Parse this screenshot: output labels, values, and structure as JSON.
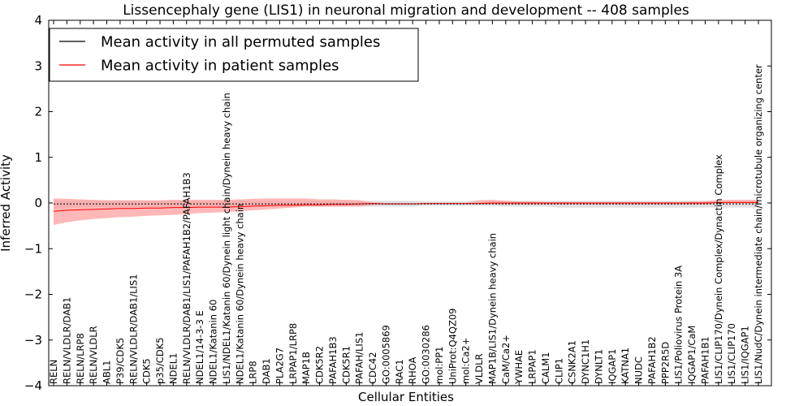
{
  "chart_data": {
    "type": "line",
    "title": "Lissencephaly gene (LIS1) in neuronal migration and development -- 408 samples",
    "xlabel": "Cellular Entities",
    "ylabel": "Inferred Activity",
    "ylim": [
      -4,
      4
    ],
    "yticks": [
      -4,
      -3,
      -2,
      -1,
      0,
      1,
      2,
      3,
      4
    ],
    "ytick_labels": [
      "−4",
      "−3",
      "−2",
      "−1",
      "0",
      "1",
      "2",
      "3",
      "4"
    ],
    "grid": false,
    "legend_position": "top-left",
    "categories": [
      "RELN",
      "RELN/VLDLR/DAB1",
      "RELN/LRP8",
      "RELN/VLDLR",
      "ABL1",
      "P39/CDK5",
      "RELN/VLDLR/DAB1/LIS1",
      "CDK5",
      "p35/CDK5",
      "NDEL1",
      "RELN/VLDLR/DAB1/LIS1/PAFAH1B2/PAFAH1B3",
      "NDEL1/14-3-3 E",
      "NDEL1/Katanin 60",
      "LIS1/NDEL1/Katanin 60/Dynein light chain/Dynein heavy chain",
      "NDEL1/Katanin 60/Dynein heavy chain",
      "LRP8",
      "DAB1",
      "PLA2G7",
      "LRPAP1/LRP8",
      "MAP1B",
      "CDK5R2",
      "PAFAH1B3",
      "CDK5R1",
      "PAFAH/LIS1",
      "CDC42",
      "GO:0005869",
      "RAC1",
      "RHOA",
      "GO:0030286",
      "mol:PP1",
      "UniProt:Q4QZ09",
      "mol:Ca2+",
      "VLDLR",
      "MAP1B/LIS1/Dynein heavy chain",
      "CaM/Ca2+",
      "YWHAE",
      "LRPAP1",
      "CALM1",
      "CLIP1",
      "CSNK2A1",
      "DYNC1H1",
      "DYNLT1",
      "IQGAP1",
      "KATNA1",
      "NUDC",
      "PAFAH1B2",
      "PPP2R5D",
      "LIS1/Poliovirus Protein 3A",
      "IQGAP1/CaM",
      "PAFAH1B1",
      "LIS1/CLIP170/Dynein Complex/Dynactin Complex",
      "LIS1/CLIP170",
      "LIS1/IQGAP1",
      "LIS1/NudC/Dynein intermediate chain/microtubule organizing center"
    ],
    "series": [
      {
        "name": "Mean activity in all permuted samples",
        "color": "#000000",
        "band_color": "#bbbbbb",
        "values": [
          -0.02,
          -0.02,
          -0.02,
          -0.02,
          -0.02,
          -0.02,
          -0.02,
          -0.02,
          -0.02,
          -0.02,
          -0.02,
          -0.02,
          -0.02,
          -0.02,
          -0.02,
          -0.02,
          -0.02,
          -0.02,
          -0.02,
          -0.02,
          -0.02,
          -0.02,
          -0.02,
          -0.02,
          -0.02,
          -0.02,
          -0.02,
          -0.02,
          -0.02,
          -0.02,
          -0.02,
          -0.02,
          -0.02,
          -0.02,
          -0.02,
          -0.02,
          -0.02,
          -0.02,
          -0.02,
          -0.02,
          -0.02,
          -0.02,
          -0.02,
          -0.02,
          -0.02,
          -0.02,
          -0.02,
          -0.02,
          -0.02,
          -0.02,
          -0.02,
          -0.02,
          -0.02,
          -0.02
        ],
        "lower": [
          -0.12,
          -0.1,
          -0.09,
          -0.09,
          -0.09,
          -0.09,
          -0.09,
          -0.09,
          -0.09,
          -0.09,
          -0.09,
          -0.09,
          -0.09,
          -0.09,
          -0.09,
          -0.08,
          -0.08,
          -0.08,
          -0.08,
          -0.08,
          -0.08,
          -0.08,
          -0.08,
          -0.08,
          -0.08,
          -0.08,
          -0.08,
          -0.08,
          -0.06,
          -0.06,
          -0.06,
          -0.06,
          -0.06,
          -0.06,
          -0.08,
          -0.08,
          -0.08,
          -0.08,
          -0.1,
          -0.1,
          -0.1,
          -0.1,
          -0.1,
          -0.1,
          -0.1,
          -0.1,
          -0.1,
          -0.1,
          -0.1,
          -0.1,
          -0.1,
          -0.1,
          -0.1,
          -0.1
        ],
        "upper": [
          0.06,
          0.05,
          0.05,
          0.05,
          0.05,
          0.05,
          0.05,
          0.05,
          0.05,
          0.05,
          0.05,
          0.05,
          0.05,
          0.05,
          0.05,
          0.05,
          0.05,
          0.05,
          0.05,
          0.05,
          0.05,
          0.05,
          0.05,
          0.05,
          0.05,
          0.05,
          0.05,
          0.05,
          0.04,
          0.04,
          0.04,
          0.04,
          0.04,
          0.04,
          0.05,
          0.05,
          0.05,
          0.05,
          0.05,
          0.05,
          0.05,
          0.05,
          0.05,
          0.05,
          0.05,
          0.05,
          0.05,
          0.05,
          0.05,
          0.05,
          0.05,
          0.05,
          0.05,
          0.05
        ]
      },
      {
        "name": "Mean activity in patient samples",
        "color": "#ff0000",
        "band_color": "#ff9999",
        "values": [
          -0.18,
          -0.16,
          -0.15,
          -0.14,
          -0.13,
          -0.12,
          -0.12,
          -0.11,
          -0.11,
          -0.1,
          -0.1,
          -0.09,
          -0.09,
          -0.09,
          -0.08,
          -0.07,
          -0.06,
          -0.05,
          -0.05,
          -0.04,
          -0.04,
          -0.03,
          -0.03,
          -0.02,
          -0.01,
          -0.02,
          -0.02,
          -0.02,
          -0.01,
          -0.01,
          -0.01,
          -0.01,
          -0.01,
          0.0,
          0.0,
          0.0,
          0.0,
          0.0,
          0.0,
          0.0,
          0.0,
          0.0,
          0.0,
          0.0,
          0.0,
          0.0,
          0.0,
          0.0,
          0.0,
          0.0,
          0.01,
          0.01,
          0.01,
          0.01
        ],
        "lower": [
          -0.48,
          -0.42,
          -0.38,
          -0.35,
          -0.33,
          -0.31,
          -0.3,
          -0.28,
          -0.27,
          -0.26,
          -0.24,
          -0.22,
          -0.21,
          -0.2,
          -0.18,
          -0.16,
          -0.14,
          -0.12,
          -0.1,
          -0.08,
          -0.08,
          -0.08,
          -0.08,
          -0.08,
          -0.04,
          -0.03,
          -0.03,
          -0.03,
          -0.02,
          -0.02,
          -0.02,
          -0.02,
          -0.02,
          -0.02,
          -0.03,
          -0.03,
          -0.03,
          -0.03,
          -0.03,
          -0.03,
          -0.03,
          -0.03,
          -0.03,
          -0.03,
          -0.03,
          -0.03,
          -0.03,
          -0.03,
          -0.03,
          -0.03,
          -0.01,
          -0.01,
          -0.01,
          -0.01
        ],
        "upper": [
          0.1,
          0.09,
          0.08,
          0.07,
          0.06,
          0.06,
          0.06,
          0.06,
          0.06,
          0.07,
          0.07,
          0.07,
          0.07,
          0.07,
          0.08,
          0.09,
          0.1,
          0.1,
          0.1,
          0.1,
          0.08,
          0.08,
          0.07,
          0.06,
          0.01,
          0.0,
          0.0,
          0.0,
          0.0,
          0.0,
          0.0,
          0.0,
          0.06,
          0.07,
          0.05,
          0.03,
          0.03,
          0.02,
          0.02,
          0.02,
          0.02,
          0.02,
          0.02,
          0.02,
          0.02,
          0.02,
          0.02,
          0.02,
          0.03,
          0.04,
          0.06,
          0.07,
          0.07,
          0.07
        ]
      }
    ]
  }
}
